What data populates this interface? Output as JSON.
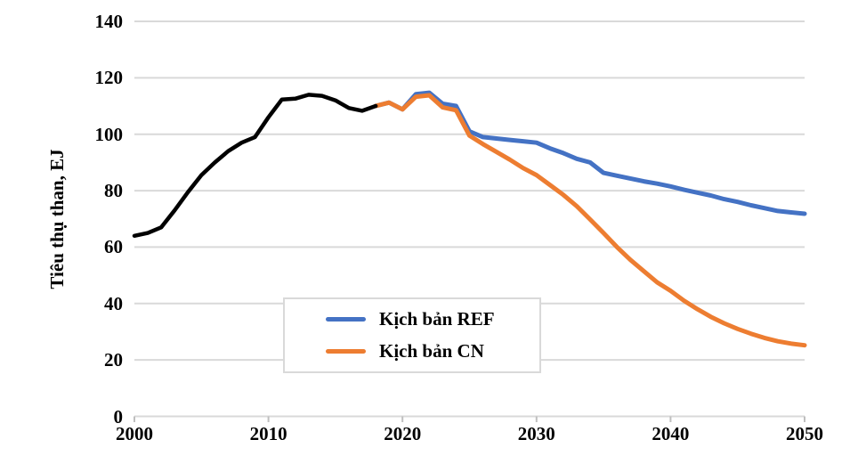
{
  "colors": {
    "background": "#ffffff",
    "gridline": "#d9d9d9",
    "axis": "#bfbfbf",
    "text": "#000000"
  },
  "chart_data": {
    "type": "line",
    "title": "",
    "xlabel": "",
    "ylabel": "Tiêu thụ than, EJ",
    "xlim": [
      2000,
      2050
    ],
    "ylim": [
      0,
      140
    ],
    "xticks": [
      2000,
      2010,
      2020,
      2030,
      2040,
      2050
    ],
    "yticks": [
      0,
      20,
      40,
      60,
      80,
      100,
      120,
      140
    ],
    "grid": "horizontal",
    "legend_position": "center-bottom-box",
    "series": [
      {
        "id": "historical",
        "name": "",
        "color": "#000000",
        "in_legend": false,
        "x": [
          2000,
          2001,
          2002,
          2003,
          2004,
          2005,
          2006,
          2007,
          2008,
          2009,
          2010,
          2011,
          2012,
          2013,
          2014,
          2015,
          2016,
          2017,
          2018
        ],
        "values": [
          64,
          65,
          67,
          73,
          79.5,
          85.5,
          90,
          94,
          97,
          99,
          106,
          112.3,
          112.6,
          114,
          113.6,
          112,
          109.3,
          108.3,
          110
        ]
      },
      {
        "id": "ref",
        "name": "Kịch bản REF",
        "color": "#4472c4",
        "in_legend": true,
        "x": [
          2018,
          2019,
          2020,
          2021,
          2022,
          2023,
          2024,
          2025,
          2026,
          2027,
          2028,
          2029,
          2030,
          2031,
          2032,
          2033,
          2034,
          2035,
          2036,
          2037,
          2038,
          2039,
          2040,
          2041,
          2042,
          2043,
          2044,
          2045,
          2046,
          2047,
          2048,
          2049,
          2050
        ],
        "values": [
          110,
          111.2,
          108.8,
          114.2,
          114.7,
          110.8,
          110,
          101,
          99,
          98.5,
          98,
          97.5,
          97,
          95,
          93.3,
          91.3,
          90,
          86.3,
          85.3,
          84.3,
          83.3,
          82.5,
          81.5,
          80.3,
          79.3,
          78.3,
          77,
          76,
          74.8,
          73.8,
          72.8,
          72.3,
          71.8
        ]
      },
      {
        "id": "cn",
        "name": "Kịch bản CN",
        "color": "#ed7d31",
        "in_legend": true,
        "x": [
          2018,
          2019,
          2020,
          2021,
          2022,
          2023,
          2024,
          2025,
          2026,
          2027,
          2028,
          2029,
          2030,
          2031,
          2032,
          2033,
          2034,
          2035,
          2036,
          2037,
          2038,
          2039,
          2040,
          2041,
          2042,
          2043,
          2044,
          2045,
          2046,
          2047,
          2048,
          2049,
          2050
        ],
        "values": [
          110,
          111.2,
          108.8,
          113.3,
          113.8,
          109.5,
          108.5,
          99.5,
          96.5,
          93.8,
          91,
          88,
          85.5,
          82,
          78.5,
          74.5,
          69.8,
          65,
          60,
          55.5,
          51.5,
          47.5,
          44.5,
          41,
          38,
          35.3,
          33,
          31,
          29.3,
          27.8,
          26.6,
          25.8,
          25.2
        ]
      }
    ]
  }
}
